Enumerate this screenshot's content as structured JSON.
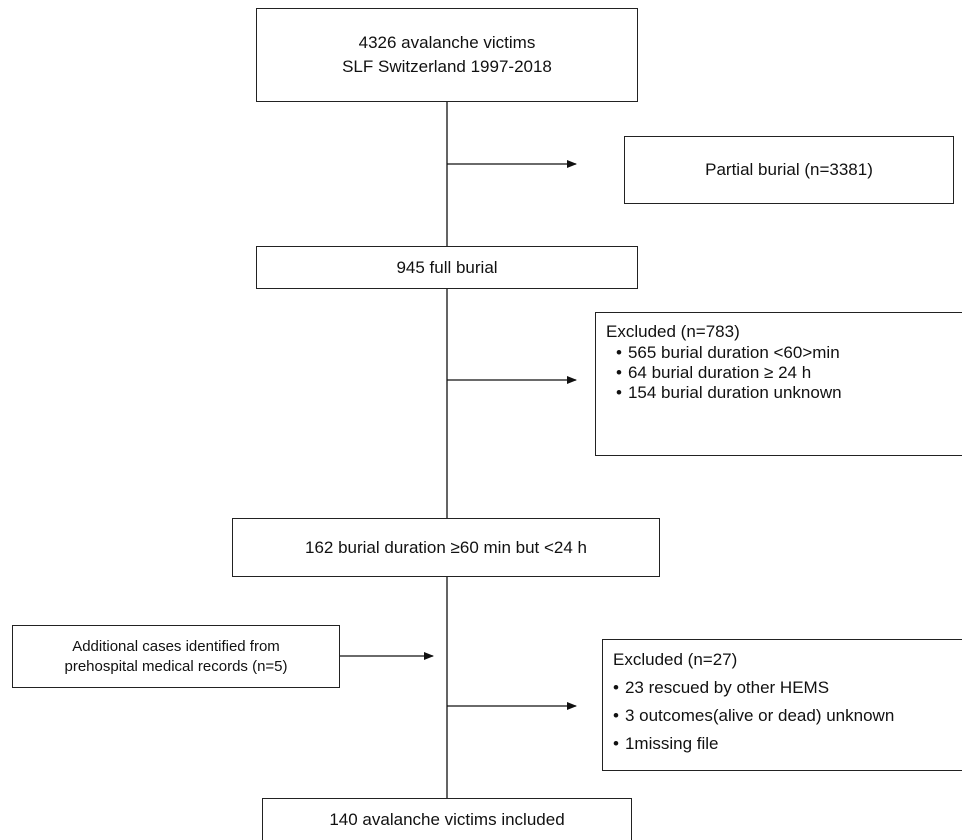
{
  "boxes": {
    "top": {
      "line1": "4326 avalanche victims",
      "line2": "SLF Switzerland 1997-2018"
    },
    "partial": {
      "label": "Partial burial (n=3381)"
    },
    "full": {
      "label": "945 full burial"
    },
    "excluded1": {
      "title": "Excluded (n=783)",
      "items": [
        "565 burial duration <60>min",
        "64 burial duration ≥ 24 h",
        "154 burial duration unknown"
      ]
    },
    "duration": {
      "label": "162 burial duration ≥60 min but <24 h"
    },
    "additional": {
      "line1": "Additional cases identified from",
      "line2": "prehospital medical records (n=5)"
    },
    "excluded2": {
      "title": "Excluded (n=27)",
      "items": [
        "23 rescued by other HEMS",
        "3 outcomes(alive or dead) unknown",
        "1missing file"
      ]
    },
    "final": {
      "label": "140 avalanche victims included"
    }
  }
}
